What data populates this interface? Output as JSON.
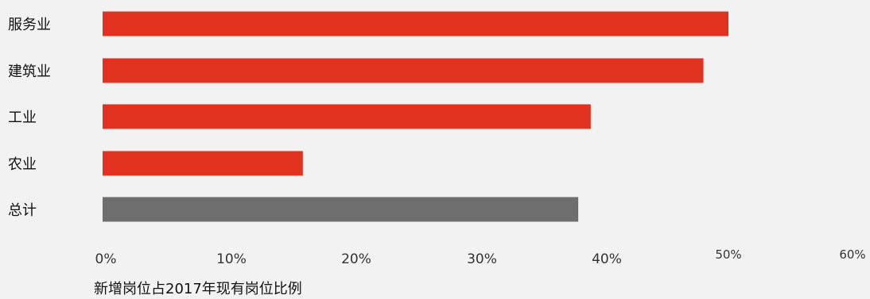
{
  "chart_data": {
    "type": "bar",
    "orientation": "horizontal",
    "categories": [
      "服务业",
      "建筑业",
      "工业",
      "农业",
      "总计"
    ],
    "values": [
      50,
      48,
      39,
      16,
      38
    ],
    "xlabel": "新增岗位占2017年现有岗位比例",
    "ylabel": "",
    "xlim": [
      0,
      60
    ],
    "x_ticks": [
      "0%",
      "10%",
      "20%",
      "30%",
      "40%",
      "50%",
      "60%"
    ],
    "grid": false,
    "legend": "none",
    "colors": {
      "sector_bar": "#e0321e",
      "total_bar": "#6e6e6e",
      "background": "#f2f2f2"
    }
  }
}
